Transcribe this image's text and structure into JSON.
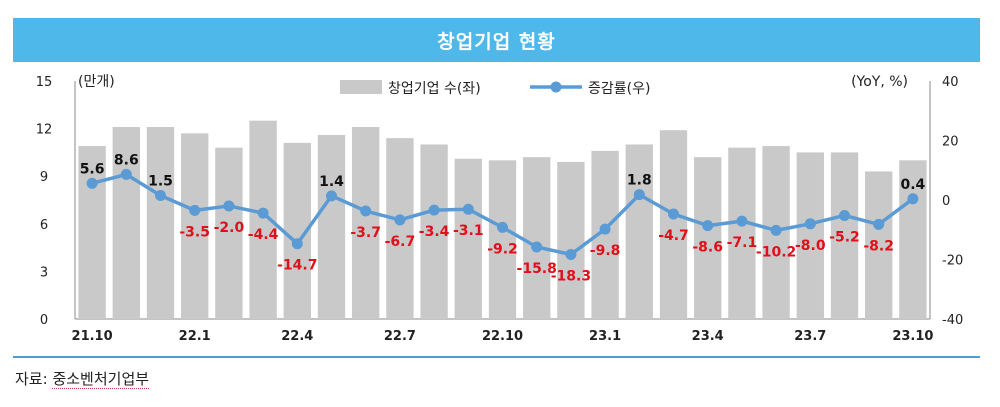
{
  "title": "창업기업 현황",
  "source": {
    "prefix": "자료:",
    "org": "중소벤처기업부"
  },
  "chart_data": {
    "type": "bar+line",
    "title": "창업기업 현황",
    "categories": [
      "21.10",
      "21.11",
      "21.12",
      "22.1",
      "22.2",
      "22.3",
      "22.4",
      "22.5",
      "22.6",
      "22.7",
      "22.8",
      "22.9",
      "22.10",
      "22.11",
      "22.12",
      "23.1",
      "23.2",
      "23.3",
      "23.4",
      "23.5",
      "23.6",
      "23.7",
      "23.8",
      "23.9",
      "23.10"
    ],
    "x_tick_labels": [
      "21.10",
      "22.1",
      "22.4",
      "22.7",
      "22.10",
      "23.1",
      "23.4",
      "23.7",
      "23.10"
    ],
    "series": [
      {
        "name": "창업기업 수(좌)",
        "type": "bar",
        "axis": "left",
        "color": "#c9c9c9",
        "values": [
          10.9,
          12.1,
          12.1,
          11.7,
          10.8,
          12.5,
          11.1,
          11.6,
          12.1,
          11.4,
          11.0,
          10.1,
          10.0,
          10.2,
          9.9,
          10.6,
          11.0,
          11.9,
          10.2,
          10.8,
          10.9,
          10.5,
          10.5,
          9.3,
          10.0
        ]
      },
      {
        "name": "증감률(우)",
        "type": "line",
        "axis": "right",
        "color": "#5b9bd5",
        "values": [
          5.6,
          8.6,
          1.5,
          -3.5,
          -2.0,
          -4.4,
          -14.7,
          1.4,
          -3.7,
          -6.7,
          -3.4,
          -3.1,
          -9.2,
          -15.8,
          -18.3,
          -9.8,
          1.8,
          -4.7,
          -8.6,
          -7.1,
          -10.2,
          -8.0,
          -5.2,
          -8.2,
          0.4
        ],
        "labels": [
          "5.6",
          "8.6",
          "1.5",
          "-3.5",
          "-2.0",
          "-4.4",
          "-14.7",
          "1.4",
          "-3.7",
          "-6.7",
          "-3.4",
          "-3.1",
          "-9.2",
          "-15.8",
          "-18.3",
          "-9.8",
          "1.8",
          "-4.7",
          "-8.6",
          "-7.1",
          "-10.2",
          "-8.0",
          "-5.2",
          "-8.2",
          "0.4"
        ]
      }
    ],
    "y_left": {
      "unit_label": "(만개)",
      "min": 0,
      "max": 15,
      "ticks": [
        0,
        3,
        6,
        9,
        12,
        15
      ]
    },
    "y_right": {
      "unit_label": "(YoY, %)",
      "min": -40,
      "max": 40,
      "ticks": [
        -40,
        -20,
        0,
        20,
        40
      ]
    },
    "label_colors": {
      "positive": "#111111",
      "negative": "#e0101a"
    },
    "grid": false,
    "legend_position": "top-center"
  }
}
